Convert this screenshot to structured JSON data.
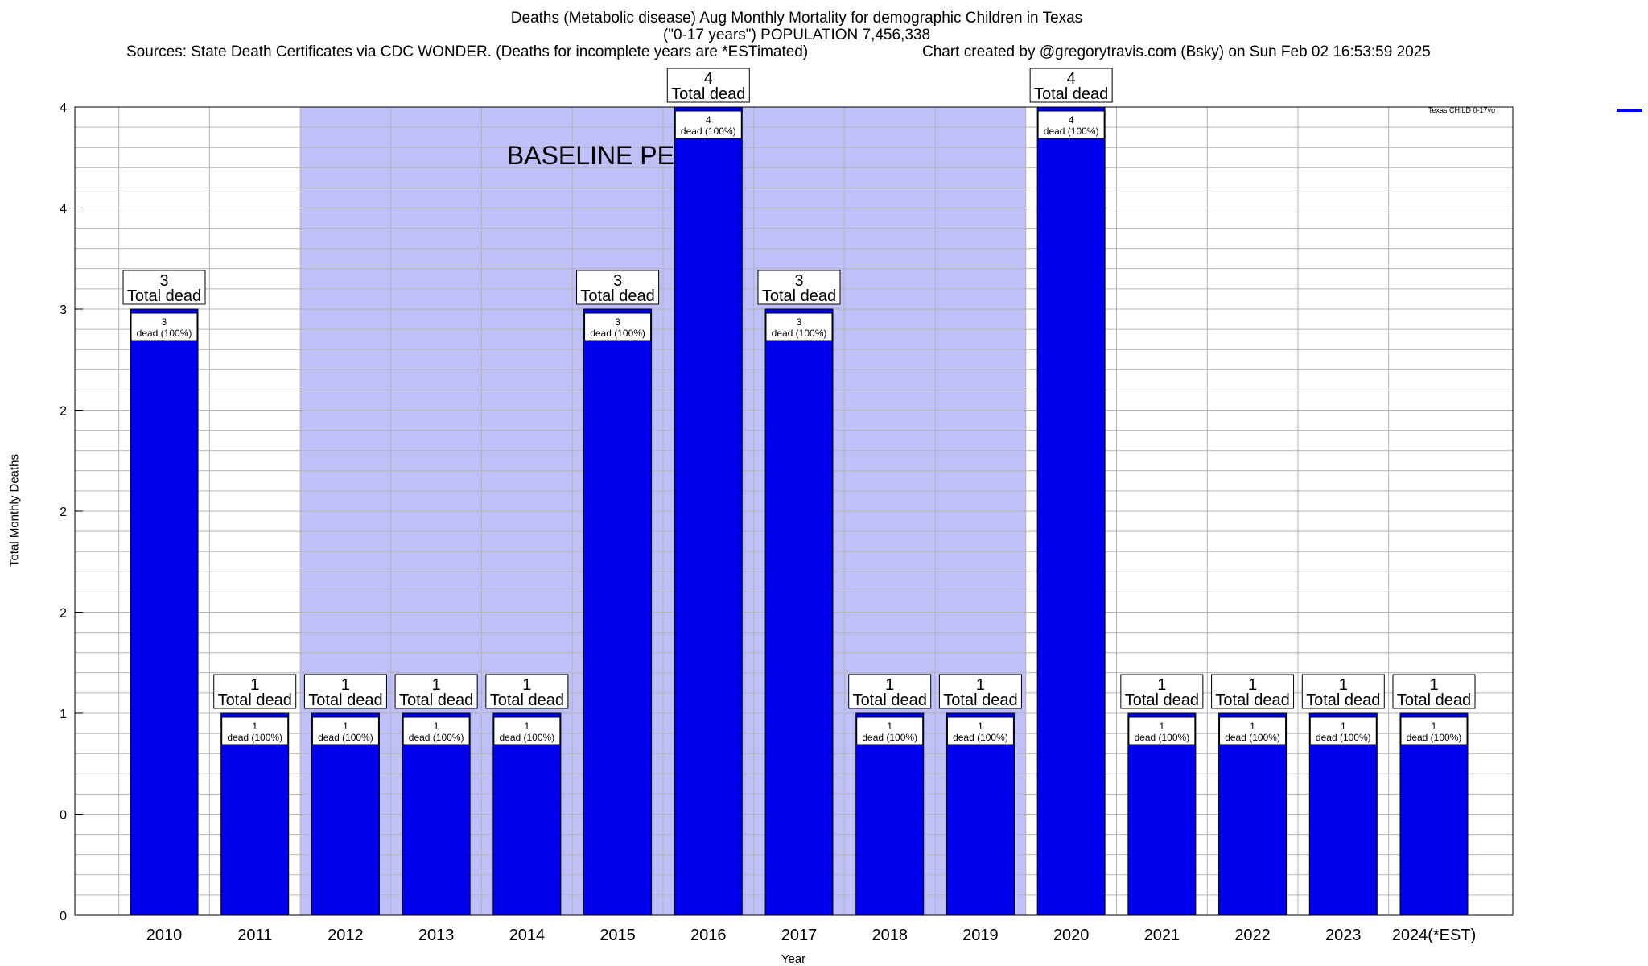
{
  "title_line1": "Deaths (Metabolic disease) Aug Monthly Mortality for demographic Children in Texas",
  "title_line2": "(\"0-17 years\") POPULATION 7,456,338",
  "sources": "Sources: State Death Certificates via CDC WONDER. (Deaths for incomplete years are *ESTimated)",
  "credit": "Chart created by @gregorytravis.com (Bsky) on Sun Feb 02 16:53:59 2025",
  "colors": {
    "bar": "#0000ee",
    "baseline": "#c0c0f8",
    "grid": "#b4b4b4"
  },
  "chart_data": {
    "type": "bar",
    "ylabel": "Total Monthly Deaths",
    "xlabel": "Year",
    "categories": [
      "2010",
      "2011",
      "2012",
      "2013",
      "2014",
      "2015",
      "2016",
      "2017",
      "2018",
      "2019",
      "2020",
      "2021",
      "2022",
      "2023",
      "2024(*EST)"
    ],
    "series": [
      {
        "name": "Texas CHILD 0-17yo",
        "values": [
          3,
          1,
          1,
          1,
          1,
          3,
          4,
          3,
          1,
          1,
          4,
          1,
          1,
          1,
          1
        ]
      }
    ],
    "ylim": [
      0,
      4
    ],
    "y_tick_labels": [
      "0",
      "0",
      "1",
      "2",
      "2",
      "2",
      "3",
      "4",
      "4"
    ],
    "baseline_period": {
      "label": "BASELINE PERIOD",
      "from": "2012",
      "to": "2019"
    },
    "top_label_word": "Total dead",
    "inner_label_suffix": "dead (100%)",
    "legend_position": "top-right",
    "grid": true
  }
}
